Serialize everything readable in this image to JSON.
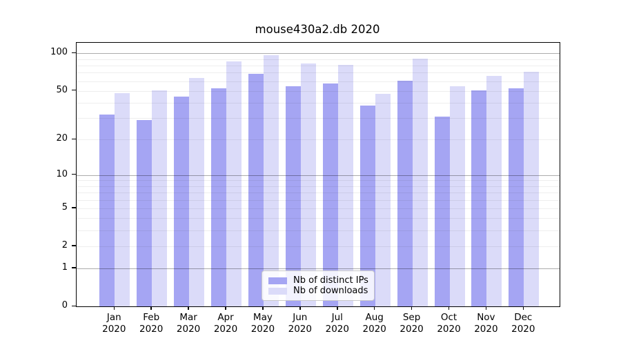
{
  "chart": {
    "title": "mouse430a2.db 2020",
    "legend": [
      {
        "label": "Nb of distinct IPs",
        "series_key": "ips"
      },
      {
        "label": "Nb of downloads",
        "series_key": "downloads"
      }
    ]
  },
  "colors": {
    "ips_bar": "#a5a5f3",
    "downloads_bar": "#dbdbf9",
    "axis": "#000000",
    "major_grid": "rgba(0,0,0,0.33)",
    "minor_grid": "rgba(0,0,0,0.065)"
  },
  "chart_data": {
    "type": "bar",
    "title": "mouse430a2.db 2020",
    "categories": [
      "Jan 2020",
      "Feb 2020",
      "Mar 2020",
      "Apr 2020",
      "May 2020",
      "Jun 2020",
      "Jul 2020",
      "Aug 2020",
      "Sep 2020",
      "Oct 2020",
      "Nov 2020",
      "Dec 2020"
    ],
    "series": [
      {
        "name": "Nb of distinct IPs",
        "color": "#a5a5f3",
        "values": [
          32,
          29,
          45,
          52,
          68,
          54,
          57,
          38,
          60,
          31,
          50,
          52
        ]
      },
      {
        "name": "Nb of downloads",
        "color": "#dbdbf9",
        "values": [
          48,
          50,
          63,
          86,
          97,
          83,
          81,
          47,
          90,
          54,
          66,
          71
        ]
      }
    ],
    "xlabel": "",
    "ylabel": "",
    "yscale": "log1p",
    "ylim": [
      0,
      121.6
    ],
    "y_ticks": [
      100,
      50,
      20,
      10,
      5,
      2,
      1,
      0
    ],
    "y_minor_gridlines": [
      2,
      3,
      4,
      5,
      6,
      7,
      8,
      9,
      20,
      30,
      40,
      50,
      60,
      70,
      80,
      90
    ],
    "y_major_gridlines": [
      1,
      10,
      100
    ],
    "grid": true,
    "legend_position": "lower center"
  }
}
